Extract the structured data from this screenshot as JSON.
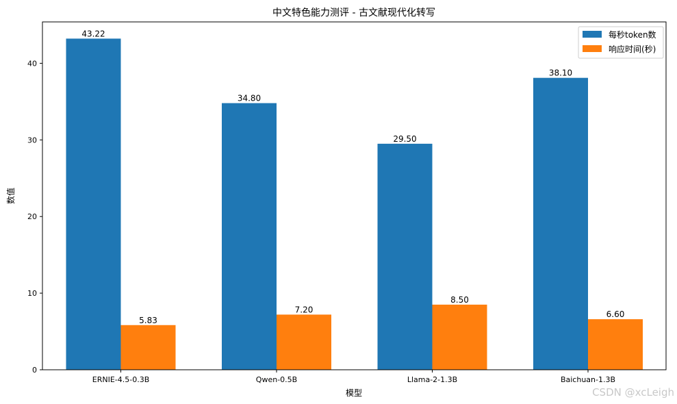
{
  "chart_data": {
    "type": "bar",
    "title": "中文特色能力测评 - 古文献现代化转写",
    "xlabel": "模型",
    "ylabel": "数值",
    "categories": [
      "ERNIE-4.5-0.3B",
      "Qwen-0.5B",
      "Llama-2-1.3B",
      "Baichuan-1.3B"
    ],
    "series": [
      {
        "name": "每秒token数",
        "color": "#1f77b4",
        "values": [
          43.22,
          34.8,
          29.5,
          38.1
        ],
        "labels": [
          "43.22",
          "34.80",
          "29.50",
          "38.10"
        ]
      },
      {
        "name": "响应时间(秒)",
        "color": "#ff7f0e",
        "values": [
          5.83,
          7.2,
          8.5,
          6.6
        ],
        "labels": [
          "5.83",
          "7.20",
          "8.50",
          "6.60"
        ]
      }
    ],
    "ylim": [
      0,
      45.4
    ],
    "yticks": [
      0,
      10,
      20,
      30,
      40
    ],
    "legend_position": "top-right",
    "grid": false
  },
  "watermark": "CSDN @xcLeigh"
}
